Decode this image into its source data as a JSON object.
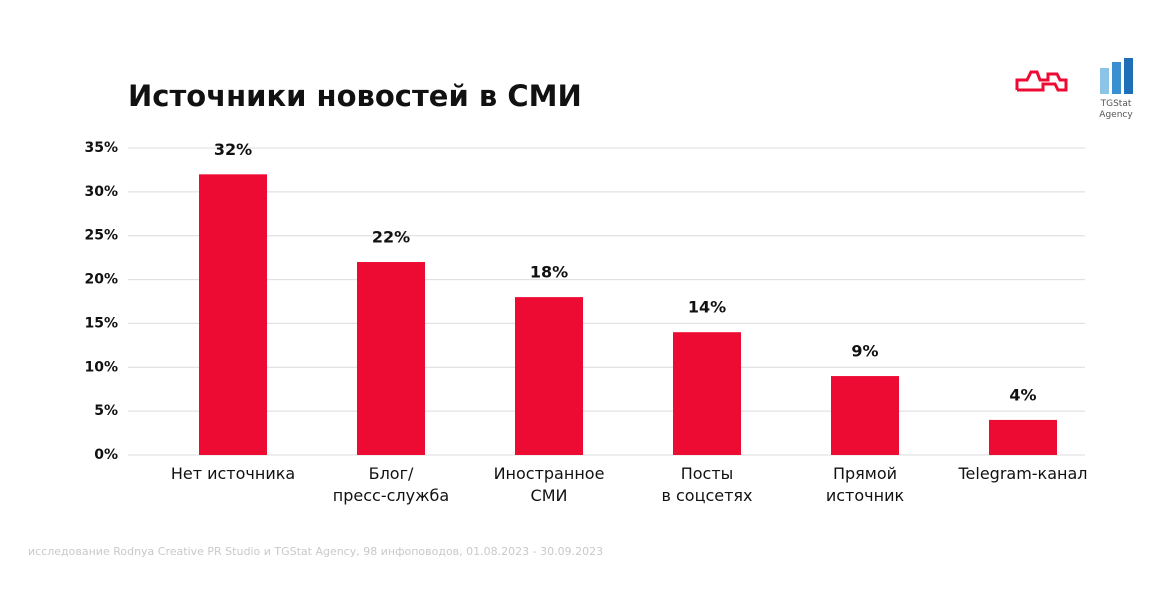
{
  "chart_data": {
    "type": "bar",
    "title": "Источники новостей в СМИ",
    "categories": [
      "Нет источника",
      "Блог/\nпресс-служба",
      "Иностранное\nСМИ",
      "Посты\nв соцсетях",
      "Прямой\nисточник",
      "Telegram-канал"
    ],
    "values": [
      32,
      22,
      18,
      14,
      9,
      4
    ],
    "value_labels": [
      "32%",
      "22%",
      "18%",
      "14%",
      "9%",
      "4%"
    ],
    "color": "#ee0b33",
    "ylim": [
      0,
      35
    ],
    "yticks": [
      {
        "value": 0,
        "label": "0%"
      },
      {
        "value": 5,
        "label": "5%"
      },
      {
        "value": 10,
        "label": "10%"
      },
      {
        "value": 15,
        "label": "15%"
      },
      {
        "value": 20,
        "label": "20%"
      },
      {
        "value": 25,
        "label": "25%"
      },
      {
        "value": 30,
        "label": "30%"
      },
      {
        "value": 35,
        "label": "35%"
      }
    ],
    "grid": true,
    "source": "исследование Rodnya Creative PR Studio и TGStat Agency, 98 инфоповодов, 01.08.2023 - 30.09.2023",
    "logo_text": "TGStat\nAgency"
  }
}
